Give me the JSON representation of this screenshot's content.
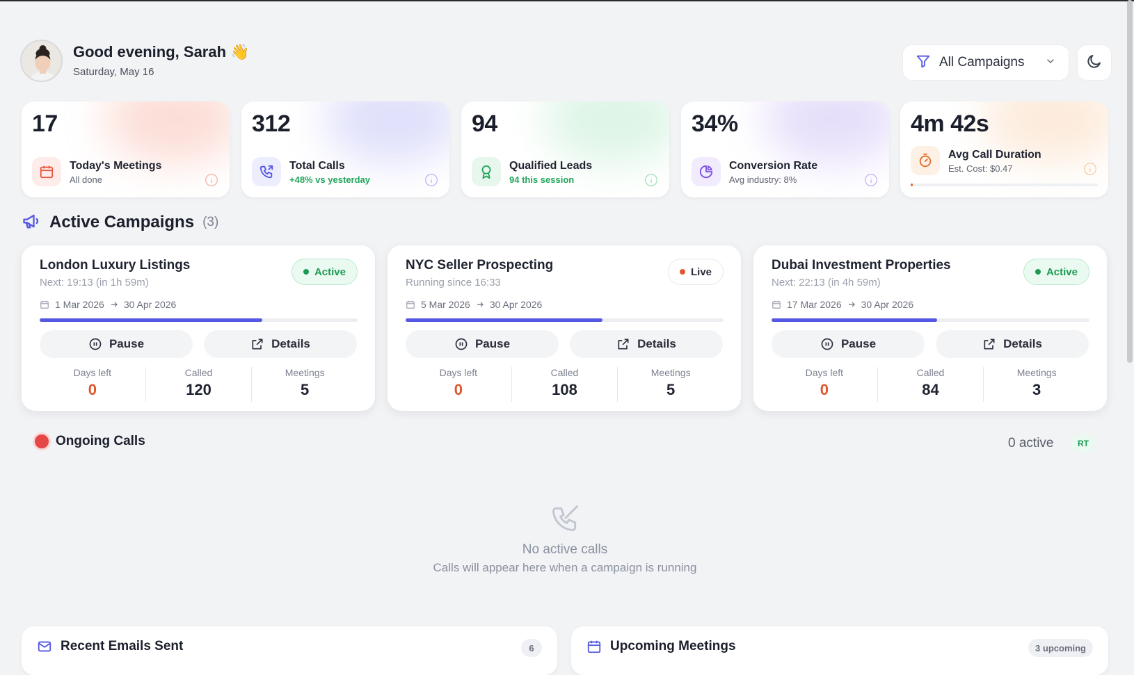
{
  "header": {
    "greeting": "Good evening, Sarah 👋",
    "date": "Saturday, May 16",
    "filter_label": "All Campaigns",
    "filter_icon": "filter-icon",
    "theme_icon": "moon-icon"
  },
  "stats": [
    {
      "value": "17",
      "title": "Today's Meetings",
      "sub": "All done",
      "icon": "calendar-icon",
      "accent": "#e8573f"
    },
    {
      "value": "312",
      "title": "Total Calls",
      "sub": "+48% vs yesterday",
      "icon": "phone-outgoing-icon",
      "accent": "#5458e3"
    },
    {
      "value": "94",
      "title": "Qualified Leads",
      "sub": "94 this session",
      "icon": "award-icon",
      "accent": "#21a559"
    },
    {
      "value": "34%",
      "title": "Conversion Rate",
      "sub": "Avg industry: 8%",
      "icon": "pie-chart-icon",
      "accent": "#7b4fe0"
    },
    {
      "value": "4m 42s",
      "title": "Avg Call Duration",
      "sub": "Est. Cost: $0.47",
      "icon": "timer-icon",
      "accent": "#e8692c",
      "progress": 0.01
    }
  ],
  "campaigns_section": {
    "title": "Active Campaigns",
    "count": "(3)",
    "icon": "megaphone-icon"
  },
  "campaigns": [
    {
      "name": "London Luxury Listings",
      "next": "Next: 19:13 (in 1h 59m)",
      "status": "Active",
      "start": "1 Mar 2026",
      "end": "30 Apr 2026",
      "progress": 0.7,
      "pause_label": "Pause",
      "details_label": "Details",
      "days_left_label": "Days left",
      "days_left": "0",
      "called_label": "Called",
      "called": "120",
      "meetings_label": "Meetings",
      "meetings": "5"
    },
    {
      "name": "NYC Seller Prospecting",
      "next": "Running since 16:33",
      "status": "Live",
      "start": "5 Mar 2026",
      "end": "30 Apr 2026",
      "progress": 0.62,
      "pause_label": "Pause",
      "details_label": "Details",
      "days_left_label": "Days left",
      "days_left": "0",
      "called_label": "Called",
      "called": "108",
      "meetings_label": "Meetings",
      "meetings": "5"
    },
    {
      "name": "Dubai Investment Properties",
      "next": "Next: 22:13 (in 4h 59m)",
      "status": "Active",
      "start": "17 Mar 2026",
      "end": "30 Apr 2026",
      "progress": 0.52,
      "pause_label": "Pause",
      "details_label": "Details",
      "days_left_label": "Days left",
      "days_left": "0",
      "called_label": "Called",
      "called": "84",
      "meetings_label": "Meetings",
      "meetings": "3"
    }
  ],
  "ongoing": {
    "title": "Ongoing Calls",
    "active_count": "0 active",
    "rt_badge": "RT",
    "empty_title": "No active calls",
    "empty_sub": "Calls will appear here when a campaign is running",
    "empty_icon": "phone-off-icon"
  },
  "emails_panel": {
    "title": "Recent Emails Sent",
    "count": "6",
    "icon": "mail-icon"
  },
  "meetings_panel": {
    "title": "Upcoming Meetings",
    "count": "3 upcoming",
    "icon": "calendar-icon"
  },
  "colors": {
    "accent": "#5458e3",
    "active_green": "#1c9a55",
    "live_red": "#e0572c",
    "background": "#f2f3f5"
  }
}
